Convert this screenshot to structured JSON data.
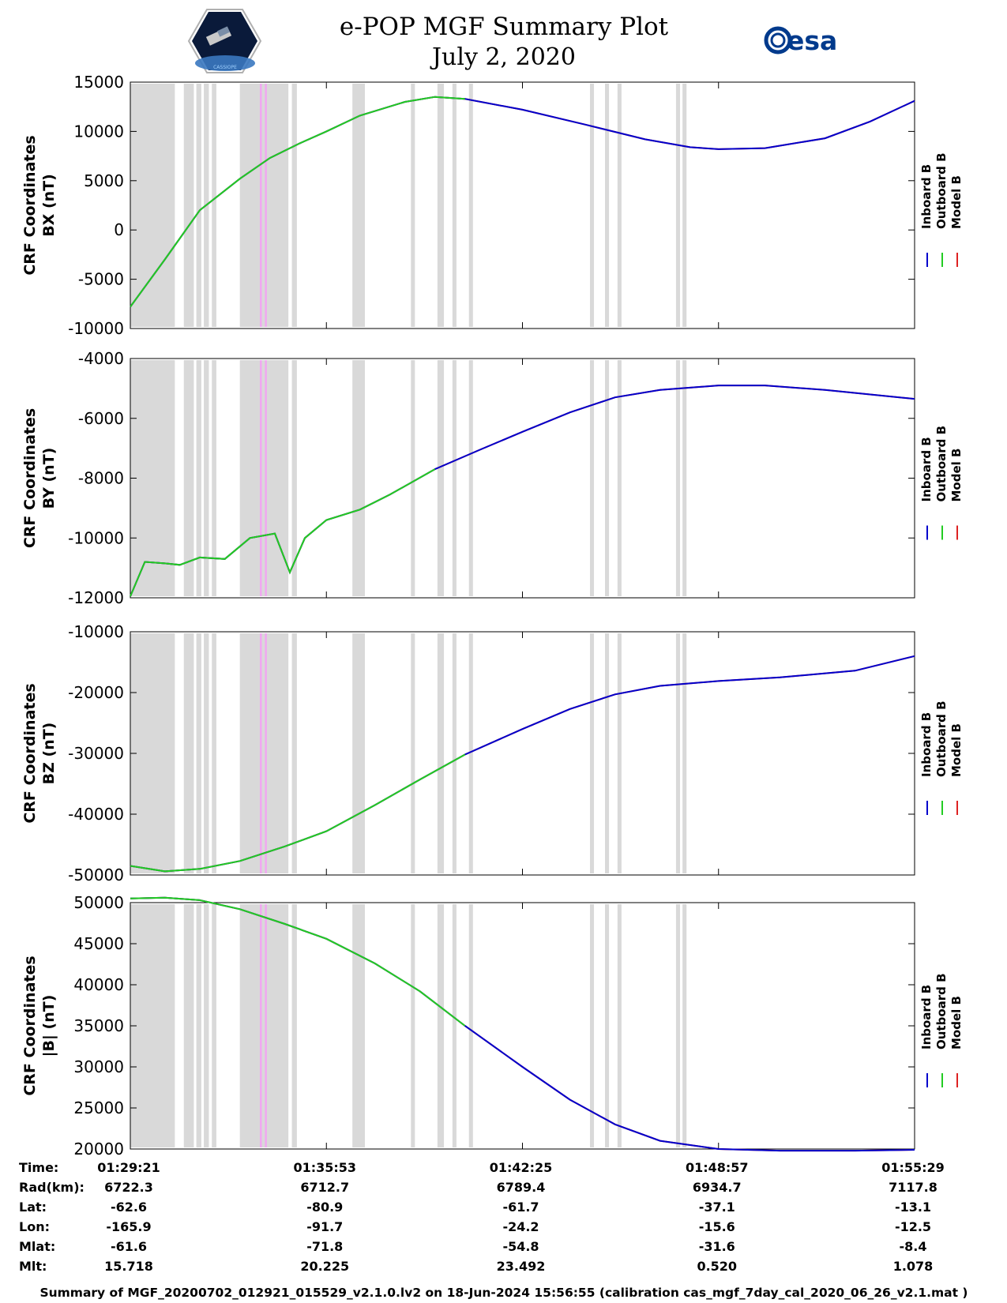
{
  "header": {
    "title": "e-POP MGF Summary Plot",
    "date": "July 2, 2020",
    "left_logo_text": "CASSIOPE",
    "right_logo_text": "esa"
  },
  "colors": {
    "inboard": "#0000cc",
    "outboard": "#22cc22",
    "model": "#dd2222",
    "gap_shade": "#d9d9d9",
    "highlight": "#f0a8f0"
  },
  "legend": [
    "Inboard B",
    "Outboard B",
    "Model B"
  ],
  "chart_data": [
    {
      "type": "line",
      "ylabel_lines": [
        "CRF Coordinates",
        "BX (nT)"
      ],
      "ylim": [
        -10000,
        15000
      ],
      "yticks": [
        15000,
        10000,
        5000,
        0,
        -5000,
        -10000
      ],
      "x": [
        "01:29:21",
        "01:30:30",
        "01:31:40",
        "01:33:00",
        "01:34:00",
        "01:35:00",
        "01:35:53",
        "01:37:00",
        "01:38:30",
        "01:39:30",
        "01:40:30",
        "01:42:25",
        "01:44:30",
        "01:46:30",
        "01:48:00",
        "01:48:57",
        "01:50:30",
        "01:52:30",
        "01:54:00",
        "01:55:29"
      ],
      "series": [
        {
          "name": "Inboard B",
          "values": [
            -7800,
            -3000,
            2000,
            5200,
            7300,
            8800,
            10000,
            11600,
            13000,
            13500,
            13300,
            12200,
            10700,
            9200,
            8400,
            8200,
            8300,
            9300,
            11000,
            13100
          ]
        },
        {
          "name": "Outboard B",
          "values": [
            -7800,
            -3000,
            2000,
            5200,
            7300,
            8800,
            10000,
            11600,
            13000,
            13500,
            13300,
            12200,
            10700,
            9200,
            8400,
            8200,
            8300,
            9300,
            11000,
            13100
          ]
        },
        {
          "name": "Model B",
          "values": [
            -7800,
            -3000,
            2000,
            5200,
            7300,
            8800,
            10000,
            11600,
            13000,
            13500,
            13300,
            12200,
            10700,
            9200,
            8400,
            8200,
            8300,
            9300,
            11000,
            13100
          ]
        }
      ]
    },
    {
      "type": "line",
      "ylabel_lines": [
        "CRF Coordinates",
        "BY (nT)"
      ],
      "ylim": [
        -12000,
        -4000
      ],
      "yticks": [
        -4000,
        -6000,
        -8000,
        -10000,
        -12000
      ],
      "x": [
        "01:29:21",
        "01:29:50",
        "01:30:30",
        "01:31:00",
        "01:31:40",
        "01:32:30",
        "01:33:20",
        "01:34:10",
        "01:34:40",
        "01:35:10",
        "01:35:53",
        "01:37:00",
        "01:38:00",
        "01:39:30",
        "01:41:00",
        "01:42:25",
        "01:44:00",
        "01:45:30",
        "01:47:00",
        "01:48:57",
        "01:50:30",
        "01:52:30",
        "01:55:29"
      ],
      "series": [
        {
          "name": "Inboard B",
          "values": [
            -11950,
            -10800,
            -10850,
            -10900,
            -10650,
            -10700,
            -10000,
            -9850,
            -11150,
            -10000,
            -9400,
            -9050,
            -8550,
            -7700,
            -7050,
            -6450,
            -5800,
            -5300,
            -5050,
            -4900,
            -4900,
            -5050,
            -5350
          ]
        },
        {
          "name": "Outboard B",
          "values": [
            -11950,
            -10800,
            -10850,
            -10900,
            -10650,
            -10700,
            -10000,
            -9850,
            -11150,
            -10000,
            -9400,
            -9050,
            -8550,
            -7700,
            -7050,
            -6450,
            -5800,
            -5300,
            -5050,
            -4900,
            -4900,
            -5050,
            -5350
          ]
        },
        {
          "name": "Model B",
          "values": [
            -11950,
            -10800,
            -10850,
            -10900,
            -10650,
            -10700,
            -10000,
            -9850,
            -11150,
            -10000,
            -9400,
            -9050,
            -8550,
            -7700,
            -7050,
            -6450,
            -5800,
            -5300,
            -5050,
            -4900,
            -4900,
            -5050,
            -5350
          ]
        }
      ]
    },
    {
      "type": "line",
      "ylabel_lines": [
        "CRF Coordinates",
        "BZ (nT)"
      ],
      "ylim": [
        -50000,
        -10000
      ],
      "yticks": [
        -10000,
        -20000,
        -30000,
        -40000,
        -50000
      ],
      "x": [
        "01:29:21",
        "01:30:30",
        "01:31:40",
        "01:33:00",
        "01:34:30",
        "01:35:53",
        "01:37:30",
        "01:39:00",
        "01:40:30",
        "01:42:25",
        "01:44:00",
        "01:45:30",
        "01:47:00",
        "01:48:57",
        "01:51:00",
        "01:53:30",
        "01:55:29"
      ],
      "series": [
        {
          "name": "Inboard B",
          "values": [
            -48500,
            -49400,
            -49000,
            -47700,
            -45300,
            -42800,
            -38500,
            -34300,
            -30200,
            -26000,
            -22700,
            -20300,
            -18900,
            -18100,
            -17500,
            -16400,
            -14000
          ]
        },
        {
          "name": "Outboard B",
          "values": [
            -48500,
            -49400,
            -49000,
            -47700,
            -45300,
            -42800,
            -38500,
            -34300,
            -30200,
            -26000,
            -22700,
            -20300,
            -18900,
            -18100,
            -17500,
            -16400,
            -14000
          ]
        },
        {
          "name": "Model B",
          "values": [
            -48500,
            -49400,
            -49000,
            -47700,
            -45300,
            -42800,
            -38500,
            -34300,
            -30200,
            -26000,
            -22700,
            -20300,
            -18900,
            -18100,
            -17500,
            -16400,
            -14000
          ]
        }
      ]
    },
    {
      "type": "line",
      "ylabel_lines": [
        "CRF Coordinates",
        "|B| (nT)"
      ],
      "ylim": [
        20000,
        50000
      ],
      "yticks": [
        50000,
        45000,
        40000,
        35000,
        30000,
        25000,
        20000
      ],
      "x": [
        "01:29:21",
        "01:30:30",
        "01:31:40",
        "01:33:00",
        "01:34:30",
        "01:35:53",
        "01:37:30",
        "01:39:00",
        "01:40:30",
        "01:42:25",
        "01:44:00",
        "01:45:30",
        "01:47:00",
        "01:48:57",
        "01:51:00",
        "01:53:30",
        "01:55:29"
      ],
      "series": [
        {
          "name": "Inboard B",
          "values": [
            50500,
            50600,
            50300,
            49200,
            47400,
            45600,
            42600,
            39200,
            35000,
            30000,
            26000,
            23000,
            21000,
            20000,
            19800,
            19800,
            19900
          ]
        },
        {
          "name": "Outboard B",
          "values": [
            50500,
            50600,
            50300,
            49200,
            47400,
            45600,
            42600,
            39200,
            35000,
            30000,
            26000,
            23000,
            21000,
            20000,
            19800,
            19800,
            19900
          ]
        },
        {
          "name": "Model B",
          "values": [
            50500,
            50600,
            50300,
            49200,
            47400,
            45600,
            42600,
            39200,
            35000,
            30000,
            26000,
            23000,
            21000,
            20000,
            19800,
            19800,
            19900
          ]
        }
      ]
    }
  ],
  "x_axis": {
    "start": "01:29:21",
    "end": "01:55:29",
    "ticks": [
      "01:29:21",
      "01:35:53",
      "01:42:25",
      "01:48:57",
      "01:55:29"
    ]
  },
  "data_gaps": [
    [
      "01:29:21",
      "01:30:50"
    ],
    [
      "01:31:08",
      "01:31:28"
    ],
    [
      "01:31:33",
      "01:31:43"
    ],
    [
      "01:31:48",
      "01:31:58"
    ],
    [
      "01:32:04",
      "01:32:13"
    ],
    [
      "01:33:00",
      "01:34:37"
    ],
    [
      "01:34:44",
      "01:34:54"
    ],
    [
      "01:36:45",
      "01:37:10"
    ],
    [
      "01:38:42",
      "01:38:50"
    ],
    [
      "01:39:35",
      "01:39:48"
    ],
    [
      "01:40:05",
      "01:40:13"
    ],
    [
      "01:40:38",
      "01:40:46"
    ],
    [
      "01:44:40",
      "01:44:48"
    ],
    [
      "01:45:10",
      "01:45:18"
    ],
    [
      "01:45:35",
      "01:45:43"
    ],
    [
      "01:47:32",
      "01:47:40"
    ],
    [
      "01:47:45",
      "01:47:53"
    ]
  ],
  "highlights": [
    [
      "01:33:40",
      "01:33:44"
    ],
    [
      "01:33:50",
      "01:33:54"
    ]
  ],
  "info_table": {
    "rows": [
      {
        "label": "Time:",
        "values": [
          "01:29:21",
          "01:35:53",
          "01:42:25",
          "01:48:57",
          "01:55:29"
        ]
      },
      {
        "label": "Rad(km):",
        "values": [
          "6722.3",
          "6712.7",
          "6789.4",
          "6934.7",
          "7117.8"
        ]
      },
      {
        "label": "Lat:",
        "values": [
          "-62.6",
          "-80.9",
          "-61.7",
          "-37.1",
          "-13.1"
        ]
      },
      {
        "label": "Lon:",
        "values": [
          "-165.9",
          "-91.7",
          "-24.2",
          "-15.6",
          "-12.5"
        ]
      },
      {
        "label": "Mlat:",
        "values": [
          "-61.6",
          "-71.8",
          "-54.8",
          "-31.6",
          "-8.4"
        ]
      },
      {
        "label": "Mlt:",
        "values": [
          "15.718",
          "20.225",
          "23.492",
          "0.520",
          "1.078"
        ]
      }
    ]
  },
  "footer": "Summary of MGF_20200702_012921_015529_v2.1.0.lv2 on 18-Jun-2024 15:56:55 (calibration cas_mgf_7day_cal_2020_06_26_v2.1.mat )"
}
